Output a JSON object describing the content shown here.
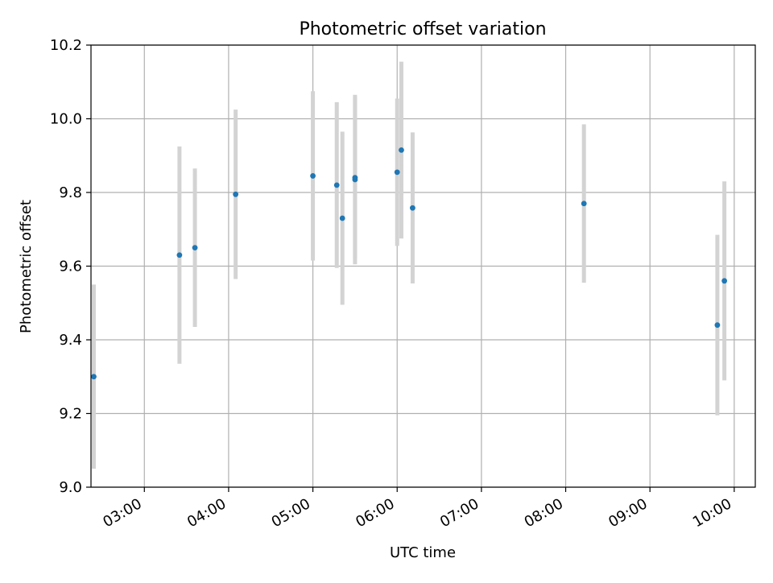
{
  "chart_data": {
    "type": "scatter",
    "title": "Photometric offset variation",
    "xlabel": "UTC time",
    "ylabel": "Photometric offset",
    "x_axis_type": "time",
    "xlim": [
      "02:22",
      "10:15"
    ],
    "ylim": [
      9.0,
      10.2
    ],
    "xticks": [
      "03:00",
      "04:00",
      "05:00",
      "06:00",
      "07:00",
      "08:00",
      "09:00",
      "10:00"
    ],
    "yticks": [
      "9.0",
      "9.2",
      "9.4",
      "9.6",
      "9.8",
      "10.0",
      "10.2"
    ],
    "grid": true,
    "marker_color": "#1f77b4",
    "errorbar_color": "#d3d3d3",
    "points": [
      {
        "x": "02:24",
        "y": 9.3,
        "yerr": 0.25
      },
      {
        "x": "03:25",
        "y": 9.63,
        "yerr": 0.295
      },
      {
        "x": "03:36",
        "y": 9.65,
        "yerr": 0.215
      },
      {
        "x": "04:05",
        "y": 9.795,
        "yerr": 0.23
      },
      {
        "x": "05:00",
        "y": 9.845,
        "yerr": 0.23
      },
      {
        "x": "05:17",
        "y": 9.82,
        "yerr": 0.225
      },
      {
        "x": "05:21",
        "y": 9.73,
        "yerr": 0.235
      },
      {
        "x": "05:30",
        "y": 9.835,
        "yerr": 0.23
      },
      {
        "x": "05:30",
        "y": 9.84,
        "yerr": 0.22
      },
      {
        "x": "06:00",
        "y": 9.855,
        "yerr": 0.2
      },
      {
        "x": "06:03",
        "y": 9.915,
        "yerr": 0.24
      },
      {
        "x": "06:11",
        "y": 9.758,
        "yerr": 0.205
      },
      {
        "x": "08:13",
        "y": 9.77,
        "yerr": 0.215
      },
      {
        "x": "09:48",
        "y": 9.44,
        "yerr": 0.245
      },
      {
        "x": "09:53",
        "y": 9.56,
        "yerr": 0.27
      }
    ]
  }
}
